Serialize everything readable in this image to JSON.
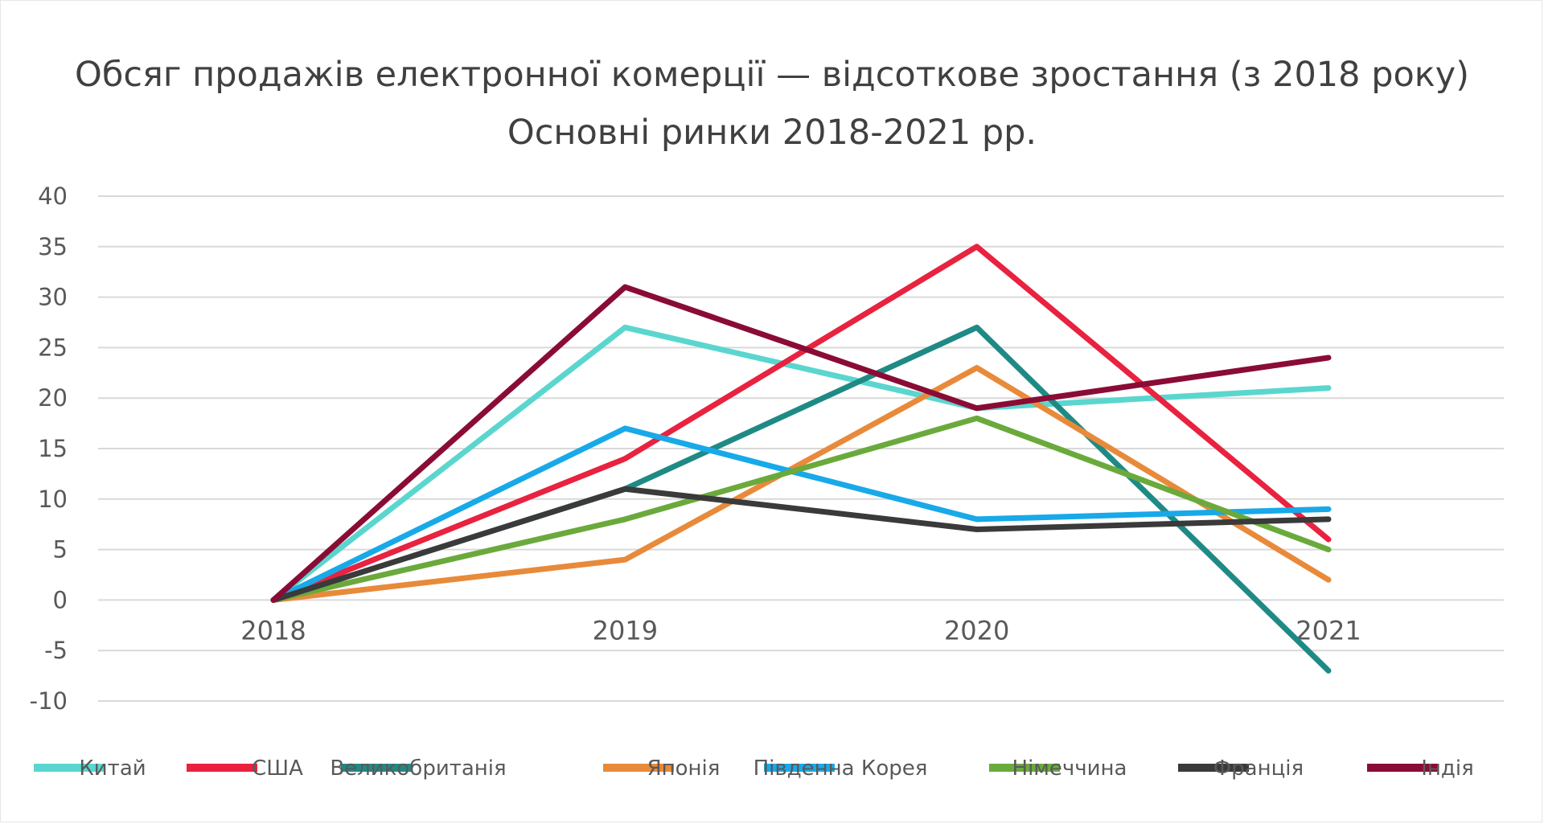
{
  "chart_data": {
    "type": "line",
    "title": "Обсяг продажів електронної комерції — відсоткове зростання (з 2018 року)",
    "subtitle": "Основні ринки 2018-2021 рр.",
    "xlabel": "",
    "ylabel": "",
    "categories": [
      "2018",
      "2019",
      "2020",
      "2021"
    ],
    "ylim": [
      -10,
      40
    ],
    "yticks": [
      40,
      35,
      30,
      25,
      20,
      15,
      10,
      5,
      0,
      -5,
      -10
    ],
    "grid": true,
    "legend_position": "bottom",
    "series": [
      {
        "name": "Китай",
        "color": "#5ad6cf",
        "values": [
          0,
          27,
          19,
          21
        ]
      },
      {
        "name": "США",
        "color": "#e8223f",
        "values": [
          0,
          14,
          35,
          6
        ]
      },
      {
        "name": "Великобританія",
        "color": "#1f8a85",
        "values": [
          0,
          11,
          27,
          -7
        ]
      },
      {
        "name": "Японія",
        "color": "#e88a3a",
        "values": [
          0,
          4,
          23,
          2
        ]
      },
      {
        "name": "Південна Корея",
        "color": "#18a9e8",
        "values": [
          0,
          17,
          8,
          9
        ]
      },
      {
        "name": "Німеччина",
        "color": "#6aaa3c",
        "values": [
          0,
          8,
          18,
          5
        ]
      },
      {
        "name": "Франція",
        "color": "#3a3a3a",
        "values": [
          0,
          11,
          7,
          8
        ]
      },
      {
        "name": "Індія",
        "color": "#8a0c34",
        "values": [
          0,
          31,
          19,
          24
        ]
      }
    ]
  }
}
